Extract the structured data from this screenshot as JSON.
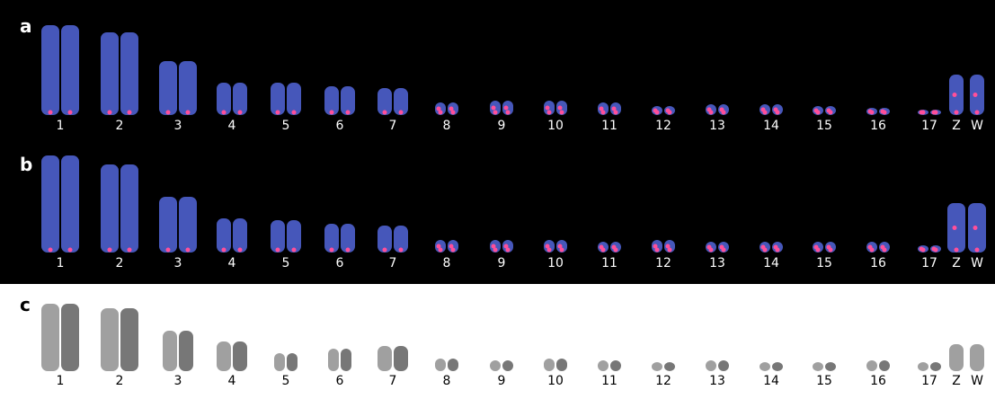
{
  "panels": [
    {
      "label": "a",
      "chromosomes": [
        "1",
        "2",
        "3",
        "4",
        "5",
        "6",
        "7",
        "8",
        "9",
        "10",
        "11",
        "12",
        "13",
        "14",
        "15",
        "16",
        "17",
        "Z",
        "W"
      ]
    },
    {
      "label": "b",
      "chromosomes": [
        "1",
        "2",
        "3",
        "4",
        "5",
        "6",
        "7",
        "8",
        "9",
        "10",
        "11",
        "12",
        "13",
        "14",
        "15",
        "16",
        "17",
        "Z",
        "W"
      ]
    },
    {
      "label": "c",
      "chromosomes": [
        "1",
        "2",
        "3",
        "4",
        "5",
        "6",
        "7",
        "8",
        "9",
        "10",
        "11",
        "12",
        "13",
        "14",
        "15",
        "16",
        "17",
        "Z",
        "W"
      ]
    }
  ]
}
